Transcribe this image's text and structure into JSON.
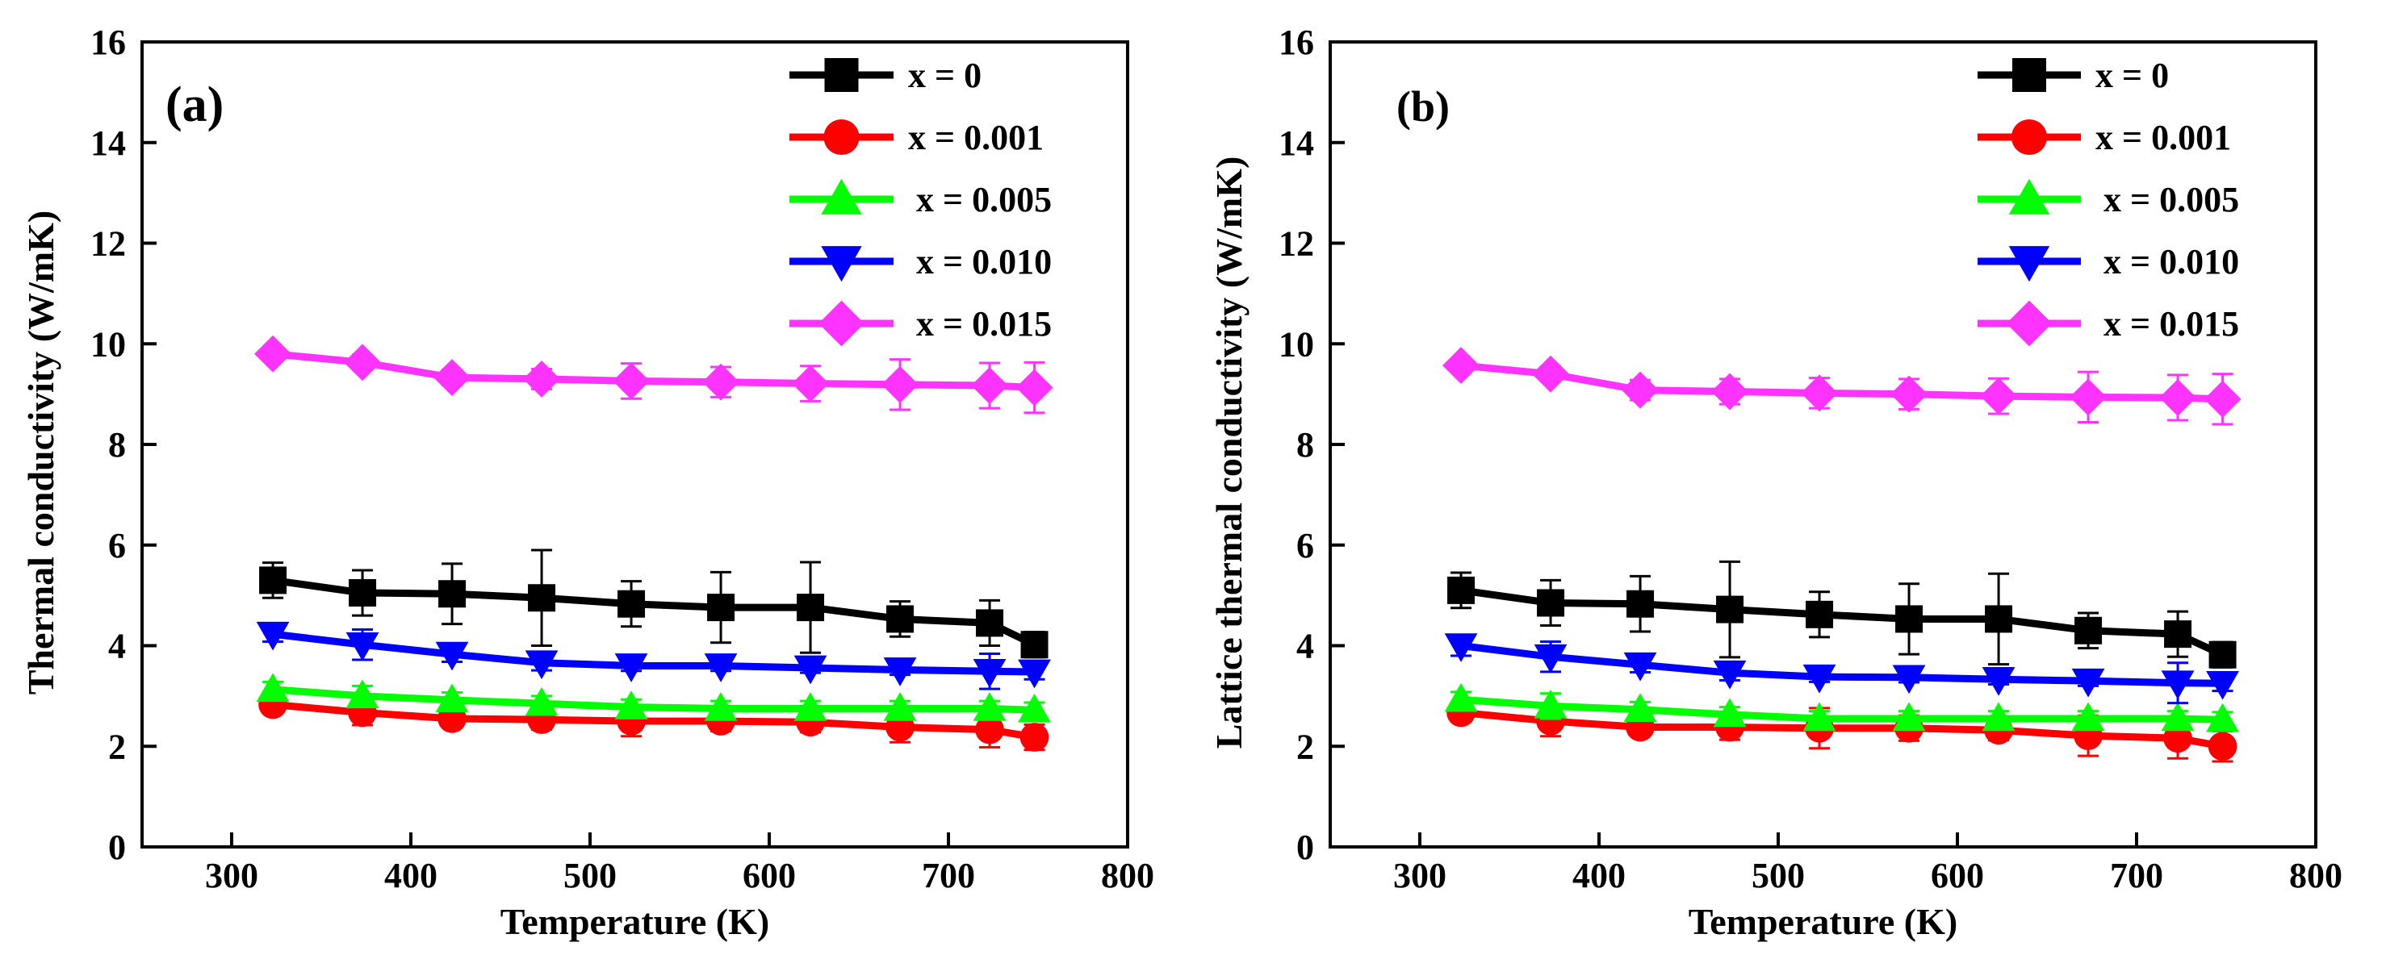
{
  "chart_data": [
    {
      "type": "line",
      "panel_label": "(a)",
      "title": "",
      "xlabel": "Temperature (K)",
      "ylabel": "Thermal conductivity (W/mK)",
      "xlim": [
        250,
        800
      ],
      "ylim": [
        0,
        16
      ],
      "xticks": [
        300,
        400,
        500,
        600,
        700,
        800
      ],
      "yticks": [
        0,
        2,
        4,
        6,
        8,
        10,
        12,
        14,
        16
      ],
      "grid": false,
      "legend_position": "top-right",
      "x": [
        323,
        373,
        423,
        473,
        523,
        573,
        623,
        673,
        723,
        748
      ],
      "series": [
        {
          "name": "x = 0",
          "color": "#000000",
          "marker": "square",
          "values": [
            5.3,
            5.05,
            5.03,
            4.95,
            4.83,
            4.76,
            4.76,
            4.53,
            4.45,
            4.02
          ],
          "errors": [
            0.35,
            0.45,
            0.6,
            0.95,
            0.45,
            0.7,
            0.9,
            0.35,
            0.45,
            0.25
          ]
        },
        {
          "name": "x = 0.001",
          "color": "#ff0000",
          "marker": "circle",
          "values": [
            2.83,
            2.67,
            2.55,
            2.53,
            2.5,
            2.5,
            2.48,
            2.38,
            2.33,
            2.18
          ],
          "errors": [
            0.1,
            0.25,
            0.15,
            0.2,
            0.3,
            0.2,
            0.2,
            0.3,
            0.35,
            0.25
          ]
        },
        {
          "name": "x = 0.005",
          "color": "#00ff00",
          "marker": "triangle-up",
          "values": [
            3.13,
            3.0,
            2.92,
            2.85,
            2.78,
            2.75,
            2.75,
            2.75,
            2.75,
            2.72
          ],
          "errors": [
            0.15,
            0.2,
            0.15,
            0.15,
            0.15,
            0.15,
            0.15,
            0.15,
            0.15,
            0.15
          ]
        },
        {
          "name": "x = 0.010",
          "color": "#0000ff",
          "marker": "triangle-down",
          "values": [
            4.23,
            4.02,
            3.83,
            3.66,
            3.6,
            3.6,
            3.56,
            3.52,
            3.49,
            3.48
          ],
          "errors": [
            0.15,
            0.3,
            0.15,
            0.15,
            0.1,
            0.1,
            0.1,
            0.1,
            0.35,
            0.15
          ]
        },
        {
          "name": "x = 0.015",
          "color": "#ff33ff",
          "marker": "diamond",
          "values": [
            9.8,
            9.63,
            9.33,
            9.3,
            9.26,
            9.24,
            9.21,
            9.19,
            9.17,
            9.13
          ],
          "errors": [
            0.1,
            0.15,
            0.15,
            0.2,
            0.35,
            0.3,
            0.35,
            0.5,
            0.45,
            0.5
          ]
        }
      ]
    },
    {
      "type": "line",
      "panel_label": "(b)",
      "title": "",
      "xlabel": "Temperature (K)",
      "ylabel": "Lattice thermal conductivity (W/mK)",
      "xlim": [
        250,
        800
      ],
      "ylim": [
        0,
        16
      ],
      "xticks": [
        300,
        400,
        500,
        600,
        700,
        800
      ],
      "yticks": [
        0,
        2,
        4,
        6,
        8,
        10,
        12,
        14,
        16
      ],
      "grid": false,
      "legend_position": "top-right",
      "x": [
        323,
        373,
        423,
        473,
        523,
        573,
        623,
        673,
        723,
        748
      ],
      "series": [
        {
          "name": "x = 0",
          "color": "#000000",
          "marker": "square",
          "values": [
            5.1,
            4.85,
            4.83,
            4.72,
            4.62,
            4.53,
            4.53,
            4.3,
            4.23,
            3.82
          ],
          "errors": [
            0.35,
            0.45,
            0.55,
            0.95,
            0.45,
            0.7,
            0.9,
            0.35,
            0.45,
            0.25
          ]
        },
        {
          "name": "x = 0.001",
          "color": "#ff0000",
          "marker": "circle",
          "values": [
            2.67,
            2.5,
            2.38,
            2.38,
            2.36,
            2.36,
            2.32,
            2.21,
            2.16,
            2.0
          ],
          "errors": [
            0.1,
            0.3,
            0.15,
            0.25,
            0.4,
            0.25,
            0.2,
            0.4,
            0.4,
            0.3
          ]
        },
        {
          "name": "x = 0.005",
          "color": "#00ff00",
          "marker": "triangle-up",
          "values": [
            2.93,
            2.8,
            2.73,
            2.63,
            2.55,
            2.55,
            2.55,
            2.55,
            2.55,
            2.53
          ],
          "errors": [
            0.15,
            0.25,
            0.15,
            0.15,
            0.15,
            0.15,
            0.15,
            0.15,
            0.15,
            0.15
          ]
        },
        {
          "name": "x = 0.010",
          "color": "#0000ff",
          "marker": "triangle-down",
          "values": [
            4.0,
            3.78,
            3.62,
            3.46,
            3.38,
            3.37,
            3.33,
            3.3,
            3.26,
            3.25
          ],
          "errors": [
            0.2,
            0.3,
            0.15,
            0.15,
            0.1,
            0.1,
            0.1,
            0.1,
            0.4,
            0.15
          ]
        },
        {
          "name": "x = 0.015",
          "color": "#ff33ff",
          "marker": "diamond",
          "values": [
            9.57,
            9.4,
            9.08,
            9.05,
            9.02,
            9.0,
            8.96,
            8.94,
            8.93,
            8.9
          ],
          "errors": [
            0.1,
            0.15,
            0.2,
            0.25,
            0.3,
            0.3,
            0.35,
            0.5,
            0.45,
            0.5
          ]
        }
      ]
    }
  ]
}
